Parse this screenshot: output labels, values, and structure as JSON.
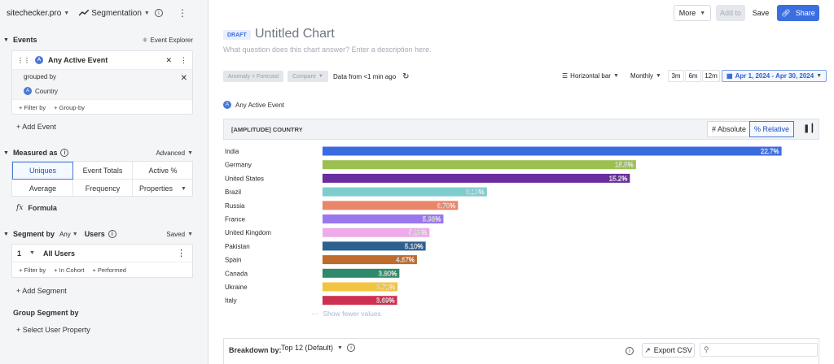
{
  "topbar": {
    "site": "sitechecker.pro",
    "chart_type": "Segmentation"
  },
  "events": {
    "title": "Events",
    "explorer_label": "Event Explorer",
    "event_name": "Any Active Event",
    "grouped_by": "grouped by",
    "group_property": "Country",
    "filter_by": "+ Filter by",
    "group_by": "+ Group-by",
    "add_event": "+ Add Event"
  },
  "measured": {
    "title": "Measured as",
    "advanced": "Advanced",
    "options": [
      "Uniques",
      "Event Totals",
      "Active %",
      "Average",
      "Frequency",
      "Properties"
    ],
    "selected": "Uniques",
    "formula": "Formula"
  },
  "segment": {
    "title": "Segment by",
    "any": "Any",
    "users": "Users",
    "saved": "Saved",
    "index": "1",
    "segment_name": "All Users",
    "filter_by": "+ Filter by",
    "in_cohort": "+ In Cohort",
    "performed": "+ Performed",
    "add_segment": "+ Add Segment",
    "group_segment": "Group Segment by",
    "select_property": "+ Select User Property"
  },
  "header": {
    "more": "More",
    "add_to": "Add to",
    "save": "Save",
    "share": "Share"
  },
  "chart_meta": {
    "draft": "DRAFT",
    "title": "Untitled Chart",
    "description": "What question does this chart answer? Enter a description here.",
    "anomaly": "Anomaly + Forecast",
    "compare": "Compare",
    "data_from": "Data from <1 min ago",
    "display": "Horizontal bar",
    "interval": "Monthly",
    "ranges": [
      "3m",
      "6m",
      "12m"
    ],
    "date_range": "Apr 1, 2024 - Apr 30, 2024",
    "legend": "Any Active Event",
    "table_title": "[AMPLITUDE] COUNTRY",
    "absolute": "# Absolute",
    "relative": "% Relative",
    "show_fewer": "Show fewer values"
  },
  "breakdown": {
    "label": "Breakdown by:",
    "value": "Top 12 (Default)",
    "export": "Export CSV"
  },
  "colors": {
    "accent": "#3b6fe0"
  },
  "chart_data": {
    "type": "bar",
    "orientation": "horizontal",
    "categories": [
      "India",
      "Germany",
      "United States",
      "Brazil",
      "Russia",
      "France",
      "United Kingdom",
      "Pakistan",
      "Spain",
      "Canada",
      "Ukraine",
      "Italy"
    ],
    "values": [
      22.7,
      15.5,
      15.2,
      8.13,
      6.7,
      5.98,
      5.29,
      5.1,
      4.67,
      3.8,
      3.71,
      3.69
    ],
    "labels": [
      "22.7%",
      "15.5%",
      "15.2%",
      "8.13%",
      "6.70%",
      "5.98%",
      "5.29%",
      "5.10%",
      "4.67%",
      "3.80%",
      "3.71%",
      "3.69%"
    ],
    "colors": [
      "#3b6be0",
      "#9bc050",
      "#6a2c9e",
      "#7fcccf",
      "#e9866a",
      "#9a77ee",
      "#eeaaea",
      "#2d6090",
      "#be6b2d",
      "#2f8a6b",
      "#f2c441",
      "#cf2f50"
    ],
    "xlim": [
      0,
      23.2
    ]
  }
}
